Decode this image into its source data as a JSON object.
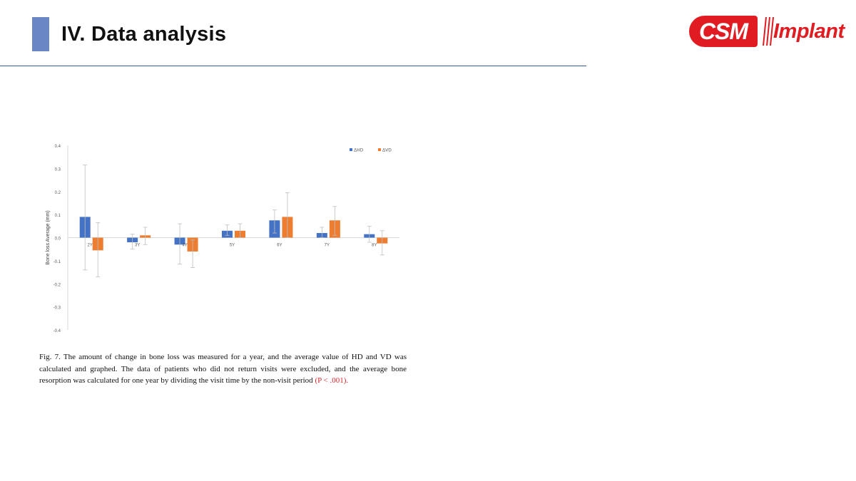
{
  "slide": {
    "title": "IV. Data analysis"
  },
  "logo": {
    "primary": "CSM",
    "secondary": "Implant",
    "color": "#e11b22"
  },
  "colors": {
    "accent_bar": "#6a86c4",
    "rule": "#3a5f8f",
    "hd": "#4472c4",
    "vd": "#ed7d31",
    "error_bar": "#bfbfbf",
    "p_value": "#d9262c"
  },
  "chart_data": {
    "type": "bar",
    "title": "",
    "xlabel": "",
    "ylabel": "Bone loss Average (mm)",
    "ylim": [
      -0.4,
      0.4
    ],
    "yticks": [
      "0.4",
      "0.3",
      "0.2",
      "0.1",
      "0.0",
      "-0.1",
      "-0.2",
      "-0.3",
      "-0.4"
    ],
    "categories": [
      "2Y",
      "3Y",
      "4Y",
      "5Y",
      "6Y",
      "7Y",
      "8Y"
    ],
    "grid": false,
    "legend_position": "top-right",
    "series": [
      {
        "name": "ΔHD",
        "color": "#4472c4",
        "values": [
          0.09,
          -0.02,
          -0.03,
          0.03,
          0.075,
          0.02,
          0.015
        ],
        "error_low": [
          -0.14,
          -0.05,
          -0.115,
          0.01,
          0.02,
          0.0,
          -0.02
        ],
        "error_high": [
          0.315,
          0.015,
          0.06,
          0.055,
          0.12,
          0.045,
          0.05
        ]
      },
      {
        "name": "ΔVD",
        "color": "#ed7d31",
        "values": [
          -0.055,
          0.01,
          -0.06,
          0.03,
          0.09,
          0.075,
          -0.025
        ],
        "error_low": [
          -0.17,
          -0.03,
          -0.13,
          0.0,
          0.0,
          0.01,
          -0.075
        ],
        "error_high": [
          0.065,
          0.045,
          -0.01,
          0.06,
          0.195,
          0.135,
          0.03
        ]
      }
    ]
  },
  "caption": {
    "text": "Fig. 7. The amount of change in bone loss was measured for a year, and the average value of HD and VD was calculated and graphed. The data of patients who did not return visits were excluded, and the average bone resorption was calculated for one year by dividing the visit time by the non-visit period",
    "p_value": "(P < .001)."
  }
}
